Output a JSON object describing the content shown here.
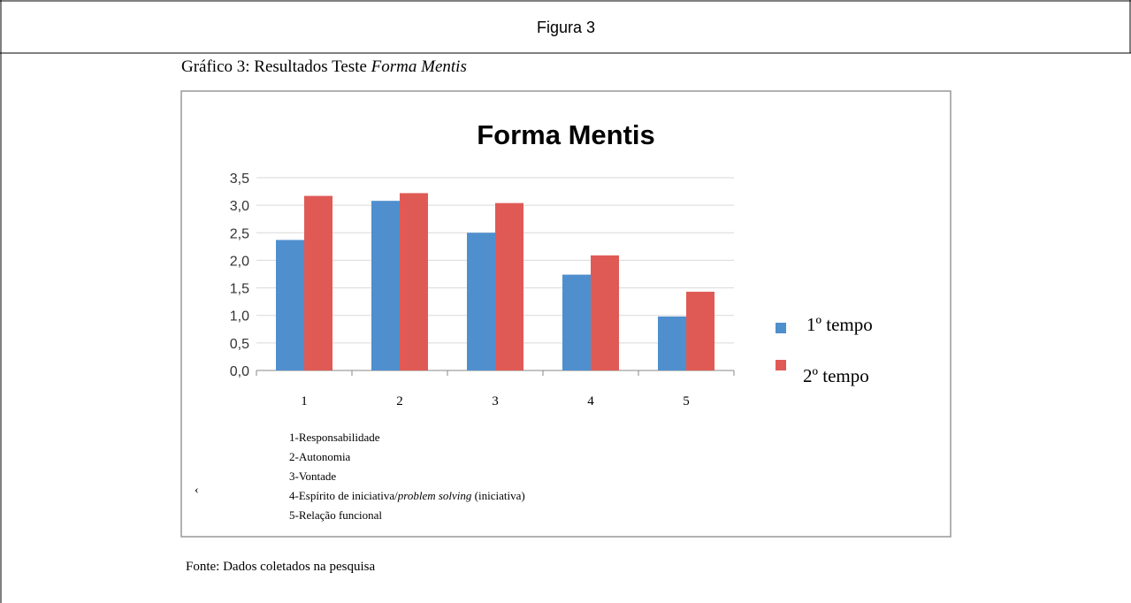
{
  "header": {
    "title": "Figura 3"
  },
  "caption": [
    "Gráfico 3: Resultados Teste ",
    "Forma Mentis"
  ],
  "chart_data": {
    "type": "bar",
    "title": "Forma Mentis",
    "categories": [
      "1",
      "2",
      "3",
      "4",
      "5"
    ],
    "series": [
      {
        "name": "1º tempo",
        "color": "#4f8fce",
        "values": [
          2.37,
          3.08,
          2.5,
          1.74,
          0.98
        ]
      },
      {
        "name": "2º tempo",
        "color": "#e05a55",
        "values": [
          3.17,
          3.22,
          3.04,
          2.09,
          1.43
        ]
      }
    ],
    "ylim": [
      0,
      3.5
    ],
    "yticks": [
      {
        "value": 0,
        "label": "0,0"
      },
      {
        "value": 0.5,
        "label": "0,5"
      },
      {
        "value": 1,
        "label": "1,0"
      },
      {
        "value": 1.5,
        "label": "1,5"
      },
      {
        "value": 2,
        "label": "2,0"
      },
      {
        "value": 2.5,
        "label": "2,5"
      },
      {
        "value": 3,
        "label": "3,0"
      },
      {
        "value": 3.5,
        "label": "3,5"
      }
    ],
    "grid": true
  },
  "notes": [
    [
      "1-Responsabilidade"
    ],
    [
      "2-Autonomia"
    ],
    [
      "3-Vontade"
    ],
    [
      "4-Espírito de iniciativa/",
      "problem solving",
      " (iniciativa)"
    ],
    [
      "5-Relação funcional"
    ]
  ],
  "stray_mark": "‹",
  "source": "Fonte: Dados coletados na pesquisa"
}
